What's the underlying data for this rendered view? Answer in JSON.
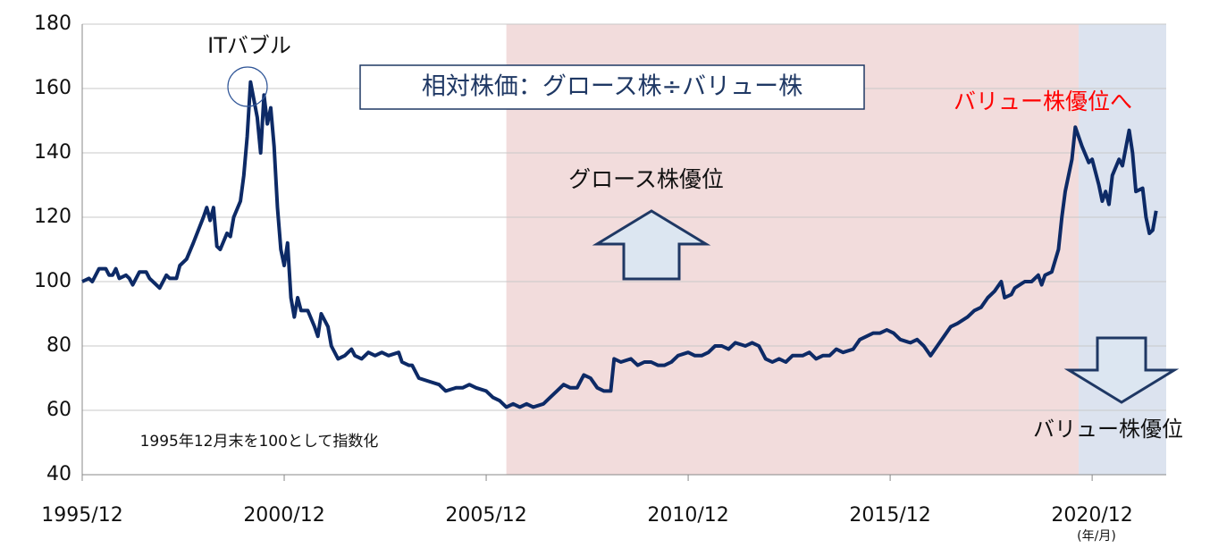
{
  "chart_data": {
    "type": "line",
    "title": "相対株価：グロース株÷バリュー株",
    "annotations": {
      "it_bubble": "ITバブル",
      "value_shift": "バリュー株優位へ",
      "growth_lead": "グロース株優位",
      "value_lead": "バリュー株優位",
      "index_note": "1995年12月末を100として指数化",
      "x_unit": "(年/月)"
    },
    "shaded_regions": [
      {
        "start": "2006/06",
        "end": "2020/08",
        "color": "#f2dcdc"
      },
      {
        "start": "2020/08",
        "end": "2022/10",
        "color": "#dce3ef"
      }
    ],
    "xlim": [
      "1995/12",
      "2022/10"
    ],
    "xticks": [
      "1995/12",
      "2000/12",
      "2005/12",
      "2010/12",
      "2015/12",
      "2020/12"
    ],
    "ylim": [
      40,
      180
    ],
    "yticks": [
      40,
      60,
      80,
      100,
      120,
      140,
      160,
      180
    ],
    "grid": true,
    "x": [
      "1995/12",
      "1996/02",
      "1996/03",
      "1996/05",
      "1996/07",
      "1996/08",
      "1996/09",
      "1996/10",
      "1996/11",
      "1997/01",
      "1997/02",
      "1997/03",
      "1997/05",
      "1997/07",
      "1997/08",
      "1997/09",
      "1997/11",
      "1998/01",
      "1998/02",
      "1998/04",
      "1998/05",
      "1998/07",
      "1998/09",
      "1998/12",
      "1999/01",
      "1999/02",
      "1999/03",
      "1999/04",
      "1999/05",
      "1999/07",
      "1999/08",
      "1999/09",
      "1999/11",
      "1999/12",
      "2000/01",
      "2000/02",
      "2000/04",
      "2000/05",
      "2000/06",
      "2000/07",
      "2000/08",
      "2000/09",
      "2000/10",
      "2000/11",
      "2000/12",
      "2001/01",
      "2001/02",
      "2001/03",
      "2001/04",
      "2001/05",
      "2001/07",
      "2001/09",
      "2001/10",
      "2001/11",
      "2001/12",
      "2002/01",
      "2002/02",
      "2002/04",
      "2002/06",
      "2002/08",
      "2002/09",
      "2002/11",
      "2003/01",
      "2003/03",
      "2003/05",
      "2003/07",
      "2003/10",
      "2003/11",
      "2004/01",
      "2004/02",
      "2004/04",
      "2004/07",
      "2004/10",
      "2004/12",
      "2005/03",
      "2005/05",
      "2005/07",
      "2005/09",
      "2005/12",
      "2006/02",
      "2006/04",
      "2006/06",
      "2006/08",
      "2006/10",
      "2006/12",
      "2007/02",
      "2007/05",
      "2007/07",
      "2007/09",
      "2007/11",
      "2008/01",
      "2008/03",
      "2008/05",
      "2008/07",
      "2008/09",
      "2008/11",
      "2009/01",
      "2009/02",
      "2009/04",
      "2009/07",
      "2009/09",
      "2009/11",
      "2010/01",
      "2010/03",
      "2010/05",
      "2010/07",
      "2010/09",
      "2010/12",
      "2011/02",
      "2011/04",
      "2011/06",
      "2011/08",
      "2011/10",
      "2011/12",
      "2012/02",
      "2012/05",
      "2012/07",
      "2012/09",
      "2012/11",
      "2013/01",
      "2013/03",
      "2013/05",
      "2013/07",
      "2013/10",
      "2013/12",
      "2014/02",
      "2014/04",
      "2014/06",
      "2014/08",
      "2014/10",
      "2015/01",
      "2015/03",
      "2015/05",
      "2015/07",
      "2015/09",
      "2015/11",
      "2016/01",
      "2016/03",
      "2016/06",
      "2016/08",
      "2016/10",
      "2016/12",
      "2017/02",
      "2017/04",
      "2017/06",
      "2017/08",
      "2017/11",
      "2018/01",
      "2018/03",
      "2018/05",
      "2018/07",
      "2018/09",
      "2018/10",
      "2018/12",
      "2019/01",
      "2019/04",
      "2019/06",
      "2019/08",
      "2019/09",
      "2019/10",
      "2019/12",
      "2020/02",
      "2020/03",
      "2020/04",
      "2020/06",
      "2020/07",
      "2020/09",
      "2020/11",
      "2020/12",
      "2021/02",
      "2021/03",
      "2021/04",
      "2021/05",
      "2021/06",
      "2021/08",
      "2021/09",
      "2021/11",
      "2021/12",
      "2022/01",
      "2022/03",
      "2022/04",
      "2022/05",
      "2022/06",
      "2022/07"
    ],
    "color": "#0d2a66",
    "values": [
      100,
      101,
      100,
      104,
      104,
      102,
      102,
      104,
      101,
      102,
      101,
      99,
      103,
      103,
      101,
      100,
      98,
      102,
      101,
      101,
      105,
      107,
      112,
      120,
      123,
      119,
      123,
      111,
      110,
      115,
      114,
      120,
      125,
      133,
      145,
      162,
      151,
      140,
      158,
      149,
      154,
      142,
      123,
      110,
      105,
      112,
      95,
      89,
      95,
      91,
      91,
      86,
      83,
      90,
      88,
      86,
      80,
      76,
      77,
      79,
      77,
      76,
      78,
      77,
      78,
      77,
      78,
      75,
      74,
      74,
      70,
      69,
      68,
      66,
      67,
      67,
      68,
      67,
      66,
      64,
      63,
      61,
      62,
      61,
      62,
      61,
      62,
      64,
      66,
      68,
      67,
      67,
      71,
      70,
      67,
      66,
      66,
      76,
      75,
      76,
      74,
      75,
      75,
      74,
      74,
      75,
      77,
      78,
      77,
      77,
      78,
      80,
      80,
      79,
      81,
      80,
      81,
      80,
      76,
      75,
      76,
      75,
      77,
      77,
      78,
      76,
      77,
      77,
      79,
      78,
      79,
      82,
      83,
      84,
      84,
      85,
      84,
      82,
      81,
      82,
      80,
      77,
      80,
      83,
      86,
      87,
      89,
      91,
      92,
      95,
      97,
      100,
      95,
      96,
      98,
      100,
      100,
      102,
      99,
      102,
      103,
      110,
      120,
      128,
      138,
      148,
      142,
      137,
      138,
      130,
      125,
      128,
      124,
      133,
      138,
      136,
      147,
      140,
      128,
      129,
      120,
      115,
      116,
      122
    ]
  }
}
